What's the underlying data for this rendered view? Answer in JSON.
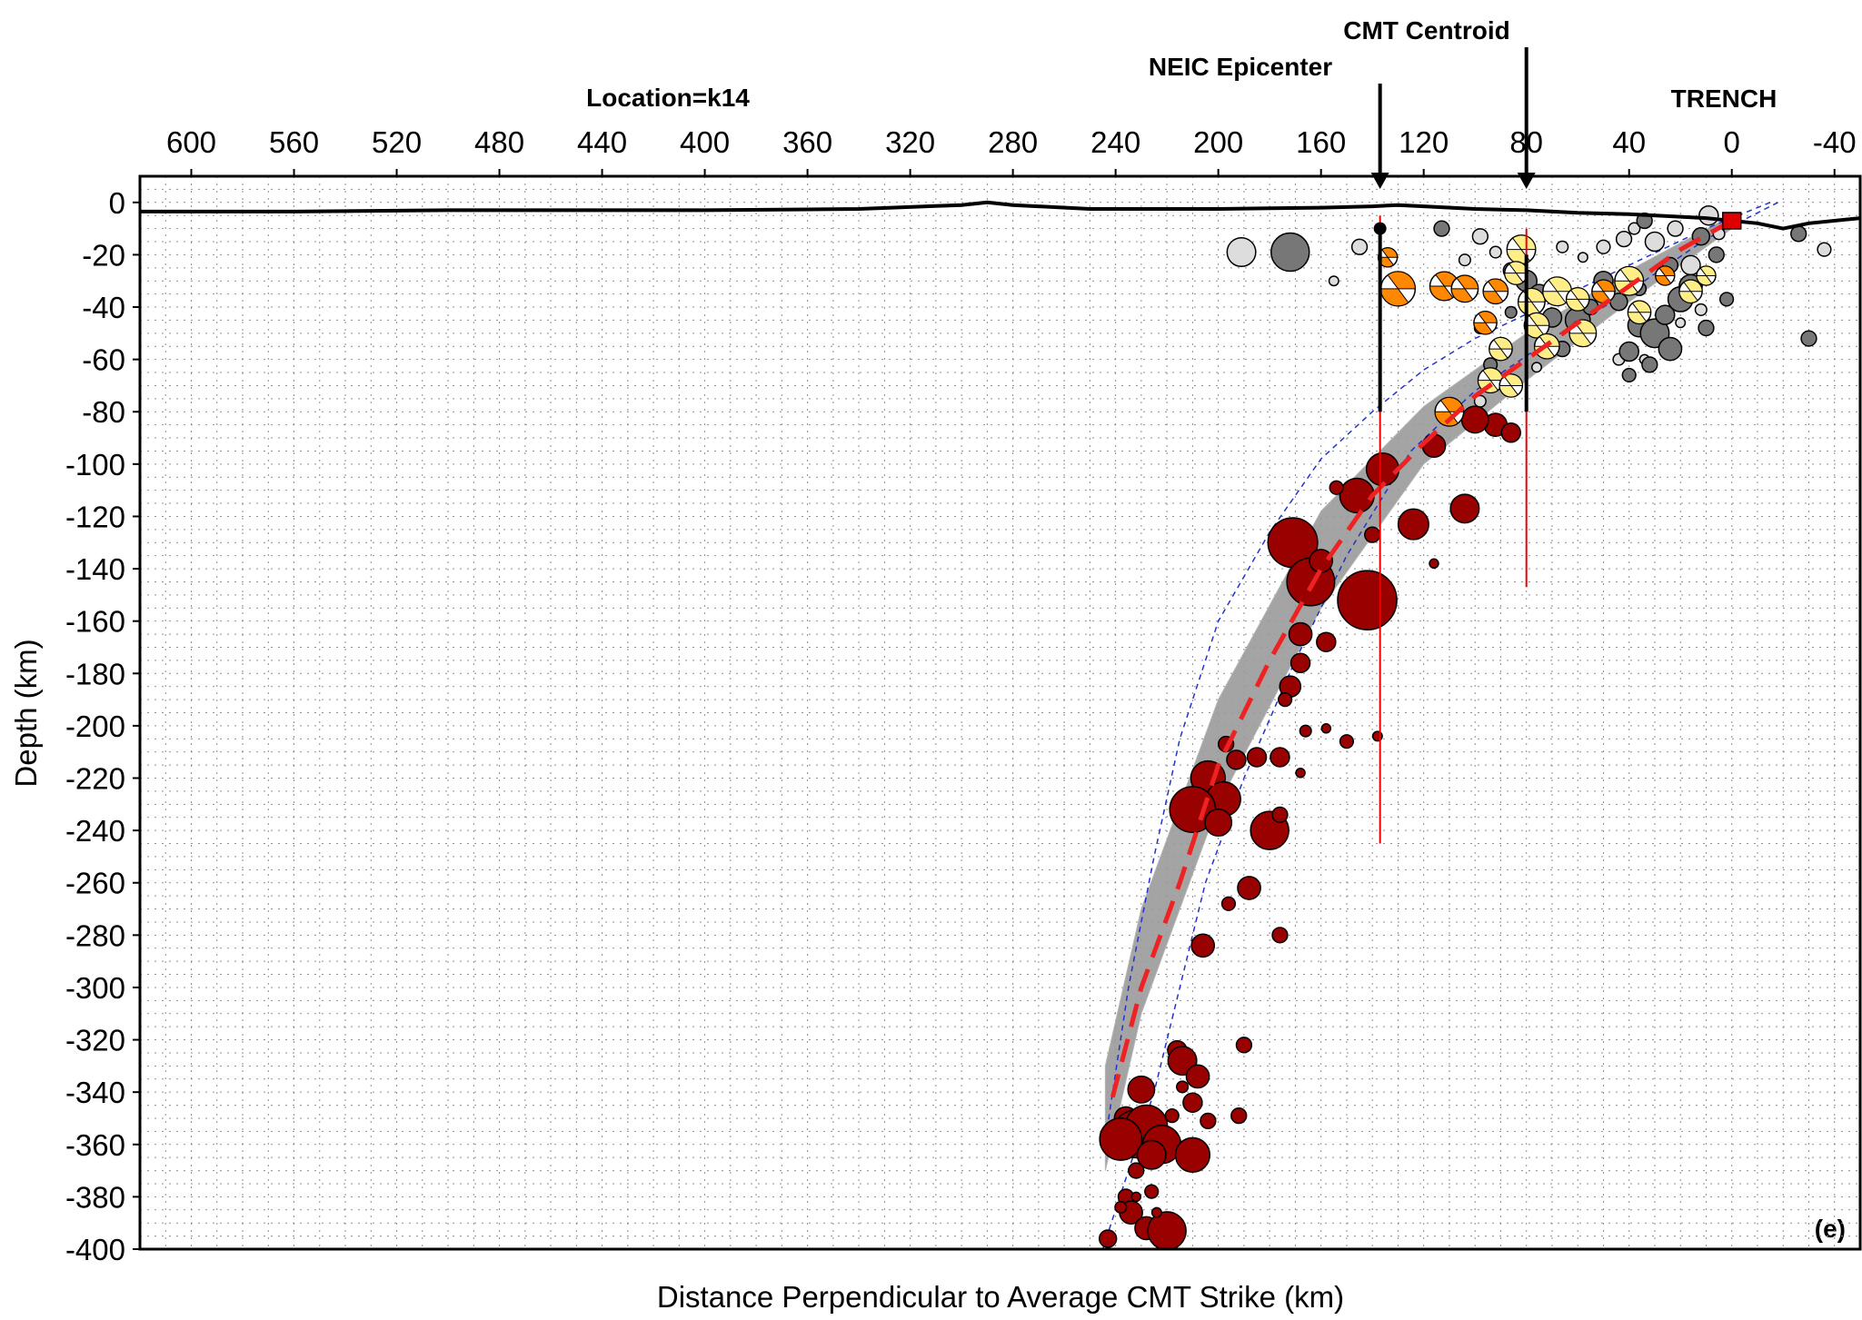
{
  "chart_data": {
    "type": "scatter",
    "title": "Location=k14",
    "panel_label": "(e)",
    "xlabel": "Distance Perpendicular to Average CMT Strike (km)",
    "ylabel": "Depth (km)",
    "xlim": [
      620,
      -50
    ],
    "ylim": [
      -400,
      10
    ],
    "x_ticks": [
      600,
      560,
      520,
      480,
      440,
      400,
      360,
      320,
      280,
      240,
      200,
      160,
      120,
      80,
      40,
      0,
      -40
    ],
    "x_tick_labels": [
      "600",
      "560",
      "520",
      "480",
      "440",
      "400",
      "360",
      "320",
      "280",
      "240",
      "200",
      "160",
      "120",
      "80",
      "40",
      "0",
      "-40"
    ],
    "y_ticks": [
      0,
      -20,
      -40,
      -60,
      -80,
      -100,
      -120,
      -140,
      -160,
      -180,
      -200,
      -220,
      -240,
      -260,
      -280,
      -300,
      -320,
      -340,
      -360,
      -380,
      -400
    ],
    "y_tick_labels": [
      "0",
      "-20",
      "-40",
      "-60",
      "-80",
      "-100",
      "-120",
      "-140",
      "-160",
      "-180",
      "-200",
      "-220",
      "-240",
      "-260",
      "-280",
      "-300",
      "-320",
      "-340",
      "-360",
      "-380",
      "-400"
    ],
    "grid": true,
    "annotations": [
      {
        "text": "NEIC Epicenter",
        "x": 136,
        "depth": -10
      },
      {
        "text": "CMT Centroid",
        "x": 80,
        "depth": -3
      },
      {
        "text": "TRENCH",
        "x": 0,
        "depth": -7
      }
    ],
    "topography": {
      "x": [
        620,
        560,
        500,
        440,
        400,
        340,
        300,
        290,
        280,
        250,
        230,
        200,
        160,
        140,
        130,
        120,
        100,
        80,
        60,
        40,
        20,
        10,
        0,
        -10,
        -20,
        -30,
        -50
      ],
      "depth": [
        -3.5,
        -3.5,
        -3,
        -3,
        -3,
        -2.5,
        -1,
        0,
        -1,
        -2.5,
        -2.5,
        -2.5,
        -2,
        -1.5,
        -1,
        -1.5,
        -2.5,
        -3,
        -4,
        -4.5,
        -5.5,
        -6,
        -7,
        -8,
        -10,
        -8,
        -6
      ]
    },
    "slab_model": {
      "x": [
        0,
        20,
        40,
        60,
        80,
        100,
        120,
        140,
        160,
        180,
        200,
        215,
        230,
        242
      ],
      "depth": [
        -7,
        -18,
        -32,
        -46,
        -60,
        -74,
        -92,
        -112,
        -140,
        -175,
        -215,
        -260,
        -300,
        -345
      ]
    },
    "slab_upper_bound": {
      "x": [
        -15,
        10,
        40,
        70,
        100,
        120,
        140,
        160,
        180,
        200,
        215,
        225,
        235,
        243
      ],
      "depth": [
        0,
        -10,
        -24,
        -38,
        -52,
        -64,
        -80,
        -98,
        -126,
        -160,
        -205,
        -250,
        -300,
        -352
      ]
    },
    "slab_lower_bound": {
      "x": [
        -18,
        10,
        40,
        70,
        100,
        125,
        150,
        170,
        190,
        205,
        215,
        225,
        235,
        245
      ],
      "depth": [
        0,
        -14,
        -34,
        -52,
        -72,
        -95,
        -135,
        -175,
        -220,
        -260,
        -300,
        -340,
        -370,
        -400
      ]
    },
    "slab_model_envelope": {
      "x": [
        0,
        40,
        80,
        120,
        160,
        200,
        230,
        244
      ],
      "depth_top": [
        -5,
        -26,
        -50,
        -78,
        -118,
        -190,
        -270,
        -330
      ],
      "depth_bottom": [
        -10,
        -38,
        -68,
        -100,
        -155,
        -230,
        -310,
        -370
      ]
    },
    "neic_epicenter": {
      "x": 137,
      "depth": -10,
      "depth_uncertainty": [
        -5,
        -245
      ]
    },
    "cmt_centroid": {
      "x": 80,
      "depth": -20,
      "depth_uncertainty": [
        -10,
        -147
      ]
    },
    "trench_marker": {
      "x": 0,
      "depth": -7,
      "color": "#dd0000"
    },
    "series": [
      {
        "type": "hypocenters_deep",
        "color": "#990000",
        "points": [
          {
            "x": 136,
            "d": -102,
            "m": 5.5
          },
          {
            "x": 146,
            "d": -112,
            "m": 5.6
          },
          {
            "x": 124,
            "d": -123,
            "m": 5.4
          },
          {
            "x": 116,
            "d": -93,
            "m": 5.0
          },
          {
            "x": 104,
            "d": -117,
            "m": 5.3
          },
          {
            "x": 92,
            "d": -85,
            "m": 5.0
          },
          {
            "x": 86,
            "d": -88,
            "m": 4.8
          },
          {
            "x": 100,
            "d": -83,
            "m": 5.2
          },
          {
            "x": 116,
            "d": -138,
            "m": 4.2
          },
          {
            "x": 140,
            "d": -127,
            "m": 4.6
          },
          {
            "x": 154,
            "d": -109,
            "m": 4.5
          },
          {
            "x": 171,
            "d": -130,
            "m": 6.4
          },
          {
            "x": 142,
            "d": -152,
            "m": 6.9
          },
          {
            "x": 164,
            "d": -145,
            "m": 6.3
          },
          {
            "x": 160,
            "d": -137,
            "m": 5.0
          },
          {
            "x": 168,
            "d": -165,
            "m": 5.0
          },
          {
            "x": 158,
            "d": -168,
            "m": 4.8
          },
          {
            "x": 168,
            "d": -176,
            "m": 4.8
          },
          {
            "x": 172,
            "d": -185,
            "m": 4.9
          },
          {
            "x": 174,
            "d": -190,
            "m": 4.5
          },
          {
            "x": 176,
            "d": -212,
            "m": 4.8
          },
          {
            "x": 166,
            "d": -202,
            "m": 4.4
          },
          {
            "x": 158,
            "d": -201,
            "m": 4.2
          },
          {
            "x": 150,
            "d": -206,
            "m": 4.5
          },
          {
            "x": 138,
            "d": -204,
            "m": 4.3
          },
          {
            "x": 185,
            "d": -212,
            "m": 4.8
          },
          {
            "x": 193,
            "d": -213,
            "m": 4.8
          },
          {
            "x": 197,
            "d": -207,
            "m": 4.6
          },
          {
            "x": 168,
            "d": -218,
            "m": 4.2
          },
          {
            "x": 204,
            "d": -220,
            "m": 5.6
          },
          {
            "x": 198,
            "d": -228,
            "m": 5.6
          },
          {
            "x": 210,
            "d": -232,
            "m": 6.2
          },
          {
            "x": 200,
            "d": -237,
            "m": 5.2
          },
          {
            "x": 180,
            "d": -240,
            "m": 5.8
          },
          {
            "x": 176,
            "d": -234,
            "m": 4.6
          },
          {
            "x": 188,
            "d": -262,
            "m": 5.0
          },
          {
            "x": 196,
            "d": -268,
            "m": 4.5
          },
          {
            "x": 176,
            "d": -280,
            "m": 4.6
          },
          {
            "x": 206,
            "d": -284,
            "m": 5.0
          },
          {
            "x": 190,
            "d": -322,
            "m": 4.6
          },
          {
            "x": 216,
            "d": -324,
            "m": 4.8
          },
          {
            "x": 214,
            "d": -328,
            "m": 5.3
          },
          {
            "x": 208,
            "d": -334,
            "m": 5.0
          },
          {
            "x": 214,
            "d": -338,
            "m": 4.4
          },
          {
            "x": 210,
            "d": -344,
            "m": 4.8
          },
          {
            "x": 218,
            "d": -349,
            "m": 4.5
          },
          {
            "x": 192,
            "d": -349,
            "m": 4.6
          },
          {
            "x": 204,
            "d": -351,
            "m": 4.6
          },
          {
            "x": 230,
            "d": -339,
            "m": 5.2
          },
          {
            "x": 236,
            "d": -350,
            "m": 5.0
          },
          {
            "x": 232,
            "d": -356,
            "m": 6.3
          },
          {
            "x": 228,
            "d": -353,
            "m": 6.0
          },
          {
            "x": 222,
            "d": -360,
            "m": 5.8
          },
          {
            "x": 210,
            "d": -364,
            "m": 5.6
          },
          {
            "x": 238,
            "d": -358,
            "m": 6.0
          },
          {
            "x": 226,
            "d": -364,
            "m": 5.3
          },
          {
            "x": 232,
            "d": -370,
            "m": 4.6
          },
          {
            "x": 236,
            "d": -380,
            "m": 4.6
          },
          {
            "x": 226,
            "d": -378,
            "m": 4.5
          },
          {
            "x": 234,
            "d": -386,
            "m": 5.0
          },
          {
            "x": 228,
            "d": -392,
            "m": 5.0
          },
          {
            "x": 220,
            "d": -393,
            "m": 5.8
          },
          {
            "x": 243,
            "d": -396,
            "m": 4.7
          },
          {
            "x": 238,
            "d": -384,
            "m": 4.4
          },
          {
            "x": 224,
            "d": -386,
            "m": 4.3
          },
          {
            "x": 232,
            "d": -380,
            "m": 4.2
          }
        ]
      },
      {
        "type": "hypocenters_shallow_dark",
        "color": "#777777",
        "points": [
          {
            "x": 172,
            "d": -19,
            "m": 5.8
          },
          {
            "x": 113,
            "d": -10,
            "m": 4.6
          },
          {
            "x": 86,
            "d": -26,
            "m": 4.6
          },
          {
            "x": 80,
            "d": -30,
            "m": 4.9
          },
          {
            "x": 75,
            "d": -35,
            "m": 4.8
          },
          {
            "x": 70,
            "d": -44,
            "m": 4.8
          },
          {
            "x": 60,
            "d": -45,
            "m": 5.1
          },
          {
            "x": 55,
            "d": -40,
            "m": 4.6
          },
          {
            "x": 50,
            "d": -30,
            "m": 4.8
          },
          {
            "x": 44,
            "d": -38,
            "m": 4.7
          },
          {
            "x": 36,
            "d": -47,
            "m": 5.0
          },
          {
            "x": 30,
            "d": -50,
            "m": 5.3
          },
          {
            "x": 24,
            "d": -56,
            "m": 5.0
          },
          {
            "x": 32,
            "d": -62,
            "m": 4.6
          },
          {
            "x": 40,
            "d": -57,
            "m": 4.8
          },
          {
            "x": 36,
            "d": -33,
            "m": 4.5
          },
          {
            "x": 20,
            "d": -37,
            "m": 5.1
          },
          {
            "x": 16,
            "d": -32,
            "m": 5.0
          },
          {
            "x": 10,
            "d": -48,
            "m": 4.6
          },
          {
            "x": 26,
            "d": -43,
            "m": 4.8
          },
          {
            "x": 34,
            "d": -7,
            "m": 4.6
          },
          {
            "x": 12,
            "d": -13,
            "m": 4.7
          },
          {
            "x": 6,
            "d": -20,
            "m": 4.6
          },
          {
            "x": 66,
            "d": -56,
            "m": 4.6
          },
          {
            "x": 58,
            "d": -52,
            "m": 4.4
          },
          {
            "x": 94,
            "d": -62,
            "m": 4.5
          },
          {
            "x": 98,
            "d": -48,
            "m": 4.4
          },
          {
            "x": 86,
            "d": -42,
            "m": 4.4
          },
          {
            "x": 24,
            "d": -24,
            "m": 4.6
          },
          {
            "x": 2,
            "d": -37,
            "m": 4.5
          },
          {
            "x": -26,
            "d": -12,
            "m": 4.6
          },
          {
            "x": -30,
            "d": -52,
            "m": 4.6
          },
          {
            "x": 40,
            "d": -66,
            "m": 4.5
          }
        ]
      },
      {
        "type": "hypocenters_shallow_light",
        "color": "#dddddd",
        "points": [
          {
            "x": 191,
            "d": -19,
            "m": 5.3
          },
          {
            "x": 145,
            "d": -17,
            "m": 4.6
          },
          {
            "x": 155,
            "d": -30,
            "m": 4.3
          },
          {
            "x": 98,
            "d": -13,
            "m": 4.6
          },
          {
            "x": 104,
            "d": -22,
            "m": 4.4
          },
          {
            "x": 92,
            "d": -19,
            "m": 4.4
          },
          {
            "x": 66,
            "d": -17,
            "m": 4.4
          },
          {
            "x": 58,
            "d": -21,
            "m": 4.3
          },
          {
            "x": 50,
            "d": -17,
            "m": 4.5
          },
          {
            "x": 42,
            "d": -14,
            "m": 4.6
          },
          {
            "x": 38,
            "d": -10,
            "m": 4.4
          },
          {
            "x": 30,
            "d": -15,
            "m": 4.8
          },
          {
            "x": 22,
            "d": -10,
            "m": 4.6
          },
          {
            "x": 16,
            "d": -24,
            "m": 4.8
          },
          {
            "x": 9,
            "d": -5,
            "m": 4.8
          },
          {
            "x": 5,
            "d": -12,
            "m": 4.4
          },
          {
            "x": 44,
            "d": -60,
            "m": 4.4
          },
          {
            "x": 34,
            "d": -60,
            "m": 4.3
          },
          {
            "x": 20,
            "d": -46,
            "m": 4.3
          },
          {
            "x": 12,
            "d": -41,
            "m": 4.4
          },
          {
            "x": -36,
            "d": -18,
            "m": 4.5
          },
          {
            "x": 76,
            "d": -63,
            "m": 4.3
          },
          {
            "x": 88,
            "d": -68,
            "m": 4.3
          },
          {
            "x": 98,
            "d": -76,
            "m": 4.4
          }
        ]
      },
      {
        "type": "focal_mechanisms",
        "points": [
          {
            "x": 134,
            "d": -21,
            "m": 4.8,
            "color": "#ff8800"
          },
          {
            "x": 130,
            "d": -33,
            "m": 5.6,
            "color": "#ff8800"
          },
          {
            "x": 112,
            "d": -32,
            "m": 5.3,
            "color": "#ff8800"
          },
          {
            "x": 104,
            "d": -33,
            "m": 5.2,
            "color": "#ff8800"
          },
          {
            "x": 92,
            "d": -34,
            "m": 5.1,
            "color": "#ff8800"
          },
          {
            "x": 110,
            "d": -80,
            "m": 5.3,
            "color": "#ff8800"
          },
          {
            "x": 82,
            "d": -18,
            "m": 5.3,
            "color": "#ffee88"
          },
          {
            "x": 84,
            "d": -27,
            "m": 5.0,
            "color": "#ffee88"
          },
          {
            "x": 78,
            "d": -38,
            "m": 5.2,
            "color": "#ffee88"
          },
          {
            "x": 68,
            "d": -34,
            "m": 5.3,
            "color": "#ffee88"
          },
          {
            "x": 60,
            "d": -37,
            "m": 5.0,
            "color": "#ffee88"
          },
          {
            "x": 50,
            "d": -34,
            "m": 5.0,
            "color": "#ff8800"
          },
          {
            "x": 40,
            "d": -30,
            "m": 5.3,
            "color": "#ffee88"
          },
          {
            "x": 36,
            "d": -42,
            "m": 5.0,
            "color": "#ffee88"
          },
          {
            "x": 16,
            "d": -34,
            "m": 5.0,
            "color": "#ffee88"
          },
          {
            "x": 26,
            "d": -28,
            "m": 4.8,
            "color": "#ff8800"
          },
          {
            "x": 10,
            "d": -28,
            "m": 4.8,
            "color": "#ffee88"
          },
          {
            "x": 76,
            "d": -47,
            "m": 5.1,
            "color": "#ffee88"
          },
          {
            "x": 72,
            "d": -55,
            "m": 5.1,
            "color": "#ffee88"
          },
          {
            "x": 58,
            "d": -50,
            "m": 5.2,
            "color": "#ffee88"
          },
          {
            "x": 90,
            "d": -56,
            "m": 5.0,
            "color": "#ffee88"
          },
          {
            "x": 94,
            "d": -68,
            "m": 5.1,
            "color": "#ffee88"
          },
          {
            "x": 86,
            "d": -70,
            "m": 5.0,
            "color": "#ffee88"
          },
          {
            "x": 96,
            "d": -46,
            "m": 5.0,
            "color": "#ff8800"
          }
        ]
      }
    ],
    "colors": {
      "deep": "#990000",
      "shallow_dark": "#777777",
      "shallow_light": "#dddddd",
      "focal_orange": "#ff8800",
      "focal_yellow": "#ffee88",
      "slab_model": "#ee2222",
      "slab_bounds": "#2233cc",
      "envelope": "#9a9a9a"
    }
  }
}
